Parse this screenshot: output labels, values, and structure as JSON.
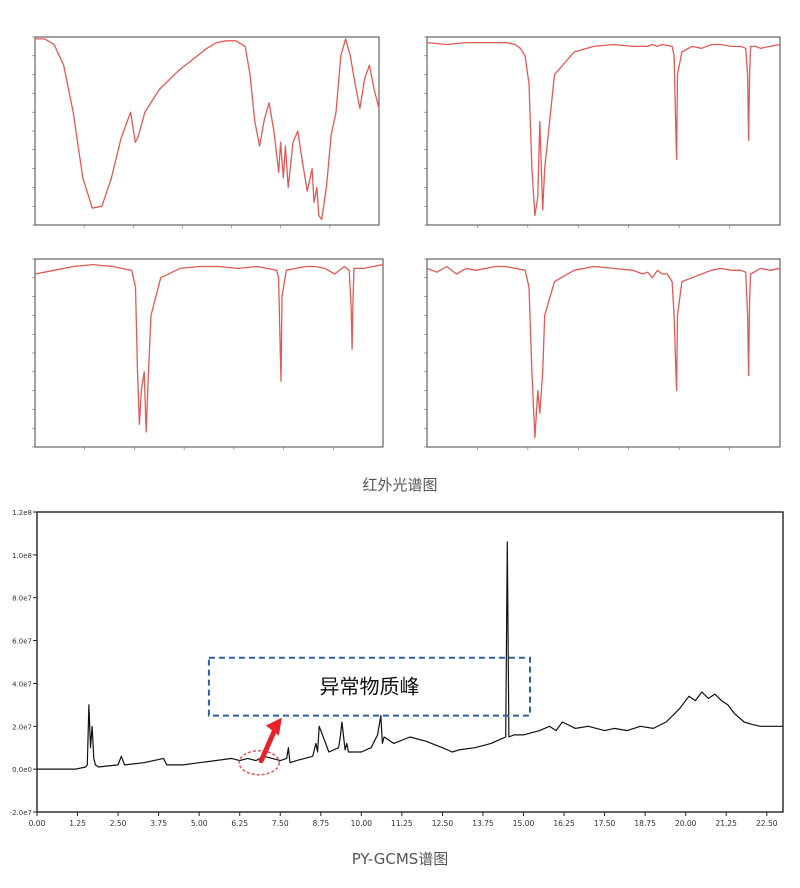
{
  "ir_caption": "红外光谱图",
  "gcms_caption": "PY-GCMS谱图",
  "colors": {
    "ir_line": "#e05a55",
    "gcms_line": "#111111",
    "annotation_box": "#2e5f9e",
    "annotation_arrow": "#e8222a",
    "annotation_circle": "#e05a55"
  },
  "chart_data": [
    {
      "type": "line",
      "title": "",
      "xlabel": "",
      "ylabel": "",
      "xlim": [
        4000,
        400
      ],
      "ylim": [
        0,
        100
      ],
      "grid": false,
      "series": [
        {
          "x": [
            4000,
            3900,
            3800,
            3700,
            3600,
            3500,
            3400,
            3300,
            3200,
            3100,
            3000,
            2950,
            2920,
            2850,
            2700,
            2500,
            2300,
            2200,
            2100,
            2000,
            1900,
            1800,
            1750,
            1700,
            1650,
            1600,
            1550,
            1500,
            1450,
            1430,
            1400,
            1380,
            1350,
            1300,
            1250,
            1200,
            1150,
            1100,
            1080,
            1050,
            1030,
            1000,
            950,
            900,
            850,
            800,
            750,
            700,
            650,
            600,
            550,
            500,
            450,
            400
          ],
          "y": [
            99,
            99,
            96,
            85,
            60,
            25,
            9,
            10,
            25,
            46,
            60,
            44,
            47,
            60,
            72,
            82,
            90,
            94,
            97,
            98,
            98,
            95,
            80,
            55,
            42,
            56,
            65,
            50,
            28,
            44,
            25,
            42,
            20,
            44,
            50,
            33,
            18,
            30,
            12,
            20,
            5,
            3,
            20,
            48,
            60,
            90,
            99,
            90,
            75,
            62,
            78,
            85,
            72,
            62
          ]
        }
      ]
    },
    {
      "type": "line",
      "title": "",
      "xlabel": "",
      "ylabel": "",
      "xlim": [
        4000,
        400
      ],
      "ylim": [
        0,
        100
      ],
      "grid": false,
      "series": [
        {
          "x": [
            4000,
            3800,
            3600,
            3400,
            3200,
            3100,
            3050,
            3000,
            2960,
            2930,
            2900,
            2870,
            2850,
            2820,
            2800,
            2700,
            2500,
            2300,
            2100,
            1900,
            1750,
            1700,
            1650,
            1600,
            1500,
            1480,
            1465,
            1455,
            1445,
            1400,
            1300,
            1200,
            1100,
            1000,
            900,
            800,
            750,
            730,
            720,
            710,
            700,
            650,
            600,
            500,
            400
          ],
          "y": [
            97,
            96,
            97,
            97,
            97,
            96,
            94,
            90,
            75,
            30,
            5,
            15,
            55,
            8,
            30,
            80,
            92,
            95,
            96,
            95,
            95,
            96,
            95,
            96,
            95,
            90,
            55,
            35,
            80,
            92,
            95,
            94,
            96,
            96,
            95,
            95,
            94,
            80,
            45,
            80,
            95,
            95,
            94,
            95,
            96
          ]
        }
      ]
    },
    {
      "type": "line",
      "title": "",
      "xlabel": "",
      "ylabel": "",
      "xlim": [
        4000,
        400
      ],
      "ylim": [
        0,
        100
      ],
      "grid": false,
      "series": [
        {
          "x": [
            4000,
            3800,
            3600,
            3400,
            3200,
            3100,
            3000,
            2960,
            2940,
            2920,
            2900,
            2870,
            2850,
            2830,
            2800,
            2700,
            2500,
            2300,
            2100,
            1900,
            1700,
            1600,
            1500,
            1480,
            1465,
            1455,
            1445,
            1400,
            1300,
            1200,
            1100,
            1000,
            900,
            800,
            750,
            730,
            720,
            710,
            700,
            600,
            500,
            400
          ],
          "y": [
            92,
            94,
            96,
            97,
            96,
            95,
            94,
            85,
            40,
            12,
            30,
            40,
            8,
            35,
            70,
            90,
            95,
            96,
            96,
            95,
            96,
            95,
            94,
            90,
            55,
            35,
            80,
            94,
            95,
            96,
            96,
            95,
            92,
            96,
            94,
            75,
            52,
            78,
            95,
            95,
            96,
            97
          ]
        }
      ]
    },
    {
      "type": "line",
      "title": "",
      "xlabel": "",
      "ylabel": "",
      "xlim": [
        4000,
        400
      ],
      "ylim": [
        0,
        100
      ],
      "grid": false,
      "series": [
        {
          "x": [
            4000,
            3900,
            3800,
            3700,
            3600,
            3500,
            3400,
            3300,
            3200,
            3100,
            3000,
            2960,
            2930,
            2900,
            2870,
            2850,
            2820,
            2800,
            2700,
            2500,
            2300,
            2100,
            1900,
            1800,
            1750,
            1700,
            1650,
            1600,
            1550,
            1500,
            1480,
            1465,
            1455,
            1445,
            1400,
            1300,
            1200,
            1100,
            1000,
            900,
            800,
            750,
            730,
            720,
            710,
            700,
            600,
            500,
            400
          ],
          "y": [
            95,
            93,
            96,
            92,
            95,
            94,
            95,
            96,
            96,
            95,
            94,
            85,
            40,
            5,
            30,
            18,
            40,
            70,
            88,
            94,
            96,
            95,
            94,
            92,
            93,
            90,
            94,
            92,
            92,
            88,
            70,
            45,
            30,
            70,
            88,
            90,
            92,
            94,
            95,
            94,
            94,
            93,
            70,
            38,
            78,
            92,
            95,
            94,
            95
          ]
        }
      ]
    },
    {
      "type": "line",
      "title": "",
      "xlabel": "",
      "ylabel": "",
      "xlim": [
        0,
        23
      ],
      "ylim": [
        -20000000.0,
        120000000.0
      ],
      "xticks": [
        "0.00",
        "1.25",
        "2.50",
        "3.75",
        "5.00",
        "6.25",
        "7.50",
        "8.75",
        "10.00",
        "11.25",
        "12.50",
        "13.75",
        "15.00",
        "16.25",
        "17.50",
        "18.75",
        "20.00",
        "21.25",
        "22.50"
      ],
      "yticks": [
        "-2.0e7",
        "0.0e0",
        "2.0e7",
        "4.0e7",
        "6.0e7",
        "8.0e7",
        "1.0e8",
        "1.2e8"
      ],
      "series": [
        {
          "x": [
            0,
            1.2,
            1.5,
            1.55,
            1.6,
            1.65,
            1.7,
            1.75,
            1.8,
            1.9,
            2.2,
            2.5,
            2.6,
            2.7,
            3.3,
            3.9,
            4.0,
            4.1,
            4.5,
            5.0,
            5.5,
            6.0,
            6.25,
            6.5,
            6.75,
            7.0,
            7.5,
            7.7,
            7.75,
            7.8,
            8.0,
            8.5,
            8.6,
            8.65,
            8.7,
            9.0,
            9.3,
            9.35,
            9.4,
            9.5,
            9.55,
            9.6,
            10.0,
            10.3,
            10.4,
            10.5,
            10.6,
            10.65,
            10.7,
            11.0,
            11.5,
            12.0,
            12.5,
            12.8,
            13.0,
            13.5,
            14.0,
            14.3,
            14.45,
            14.5,
            14.55,
            14.7,
            15.0,
            15.5,
            15.8,
            16.0,
            16.2,
            16.6,
            17.0,
            17.5,
            17.8,
            18.2,
            18.6,
            19.0,
            19.4,
            19.8,
            20.1,
            20.3,
            20.5,
            20.7,
            20.9,
            21.1,
            21.3,
            21.5,
            21.8,
            22.0,
            22.3,
            22.5,
            23.0
          ],
          "y": [
            0,
            0,
            1000000.0,
            2000000.0,
            30000000.0,
            10000000.0,
            20000000.0,
            5000000.0,
            2000000.0,
            1000000.0,
            1500000.0,
            2000000.0,
            6000000.0,
            2000000.0,
            3000000.0,
            5000000.0,
            2000000.0,
            2000000.0,
            2000000.0,
            3000000.0,
            4000000.0,
            5000000.0,
            4000000.0,
            5000000.0,
            4000000.0,
            6000000.0,
            4000000.0,
            5000000.0,
            10000000.0,
            3000000.0,
            4000000.0,
            6000000.0,
            12000000.0,
            8000000.0,
            20000000.0,
            8000000.0,
            10000000.0,
            15000000.0,
            22000000.0,
            9000000.0,
            12000000.0,
            8000000.0,
            8000000.0,
            10000000.0,
            13000000.0,
            16000000.0,
            25000000.0,
            12000000.0,
            15000000.0,
            12000000.0,
            15000000.0,
            13000000.0,
            10000000.0,
            8000000.0,
            9000000.0,
            10000000.0,
            12000000.0,
            14000000.0,
            15000000.0,
            106000000.0,
            15000000.0,
            16000000.0,
            16000000.0,
            18000000.0,
            20000000.0,
            18000000.0,
            22000000.0,
            19000000.0,
            20000000.0,
            18000000.0,
            19000000.0,
            18000000.0,
            20000000.0,
            19000000.0,
            22000000.0,
            28000000.0,
            34000000.0,
            32000000.0,
            36000000.0,
            33000000.0,
            35000000.0,
            32000000.0,
            30000000.0,
            26000000.0,
            22000000.0,
            21000000.0,
            20000000.0,
            20000000.0,
            20000000.0
          ]
        }
      ],
      "annotations": [
        {
          "text": "异常物质峰"
        }
      ]
    }
  ]
}
